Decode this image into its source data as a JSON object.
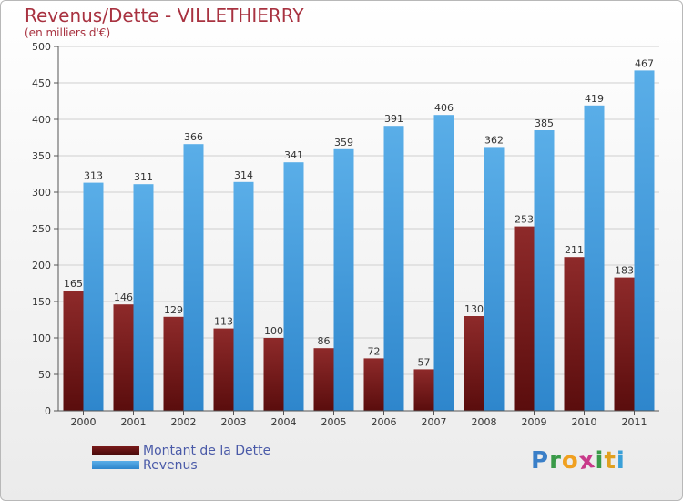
{
  "chart_data": {
    "type": "bar",
    "title": "Revenus/Dette - VILLETHIERRY",
    "subtitle": "(en milliers d'€)",
    "categories": [
      "2000",
      "2001",
      "2002",
      "2003",
      "2004",
      "2005",
      "2006",
      "2007",
      "2008",
      "2009",
      "2010",
      "2011"
    ],
    "series": [
      {
        "name": "Montant de la Dette",
        "values": [
          165,
          146,
          129,
          113,
          100,
          86,
          72,
          57,
          130,
          253,
          211,
          183
        ],
        "color": "#7a1a1a"
      },
      {
        "name": "Revenus",
        "values": [
          313,
          311,
          366,
          314,
          341,
          359,
          391,
          406,
          362,
          385,
          419,
          467
        ],
        "color": "#4aa0e0"
      }
    ],
    "ylim": [
      0,
      500
    ],
    "yticks": [
      0,
      50,
      100,
      150,
      200,
      250,
      300,
      350,
      400,
      450,
      500
    ],
    "grid": true,
    "legend_position": "bottom-left",
    "data_labels": true
  },
  "logo": {
    "letters": [
      {
        "char": "P",
        "color": "#3a7fc8"
      },
      {
        "char": "r",
        "color": "#3a9a48"
      },
      {
        "char": "o",
        "color": "#f0a020"
      },
      {
        "char": "x",
        "color": "#c83a8a"
      },
      {
        "char": "i",
        "color": "#3a9a48"
      },
      {
        "char": "t",
        "color": "#e0a020"
      },
      {
        "char": "i",
        "color": "#3aa0d8"
      }
    ]
  }
}
